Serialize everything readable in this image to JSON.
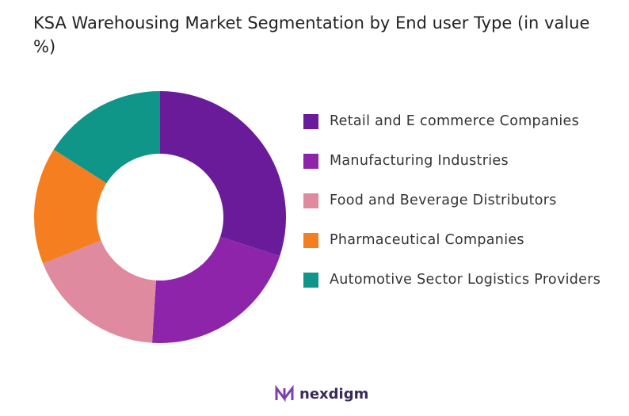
{
  "chart_data": {
    "type": "donut",
    "title": "KSA Warehousing Market Segmentation by End user Type (in value %)",
    "categories": [
      "Retail and E commerce Companies",
      "Manufacturing Industries",
      "Food and Beverage Distributors",
      "Pharmaceutical Companies",
      "Automotive Sector Logistics Providers"
    ],
    "values": [
      30,
      21,
      18,
      15,
      16
    ],
    "colors": [
      "#6a1b9a",
      "#8e24aa",
      "#e08aa0",
      "#f57f20",
      "#0f9688"
    ]
  },
  "brand": "nexdigm"
}
